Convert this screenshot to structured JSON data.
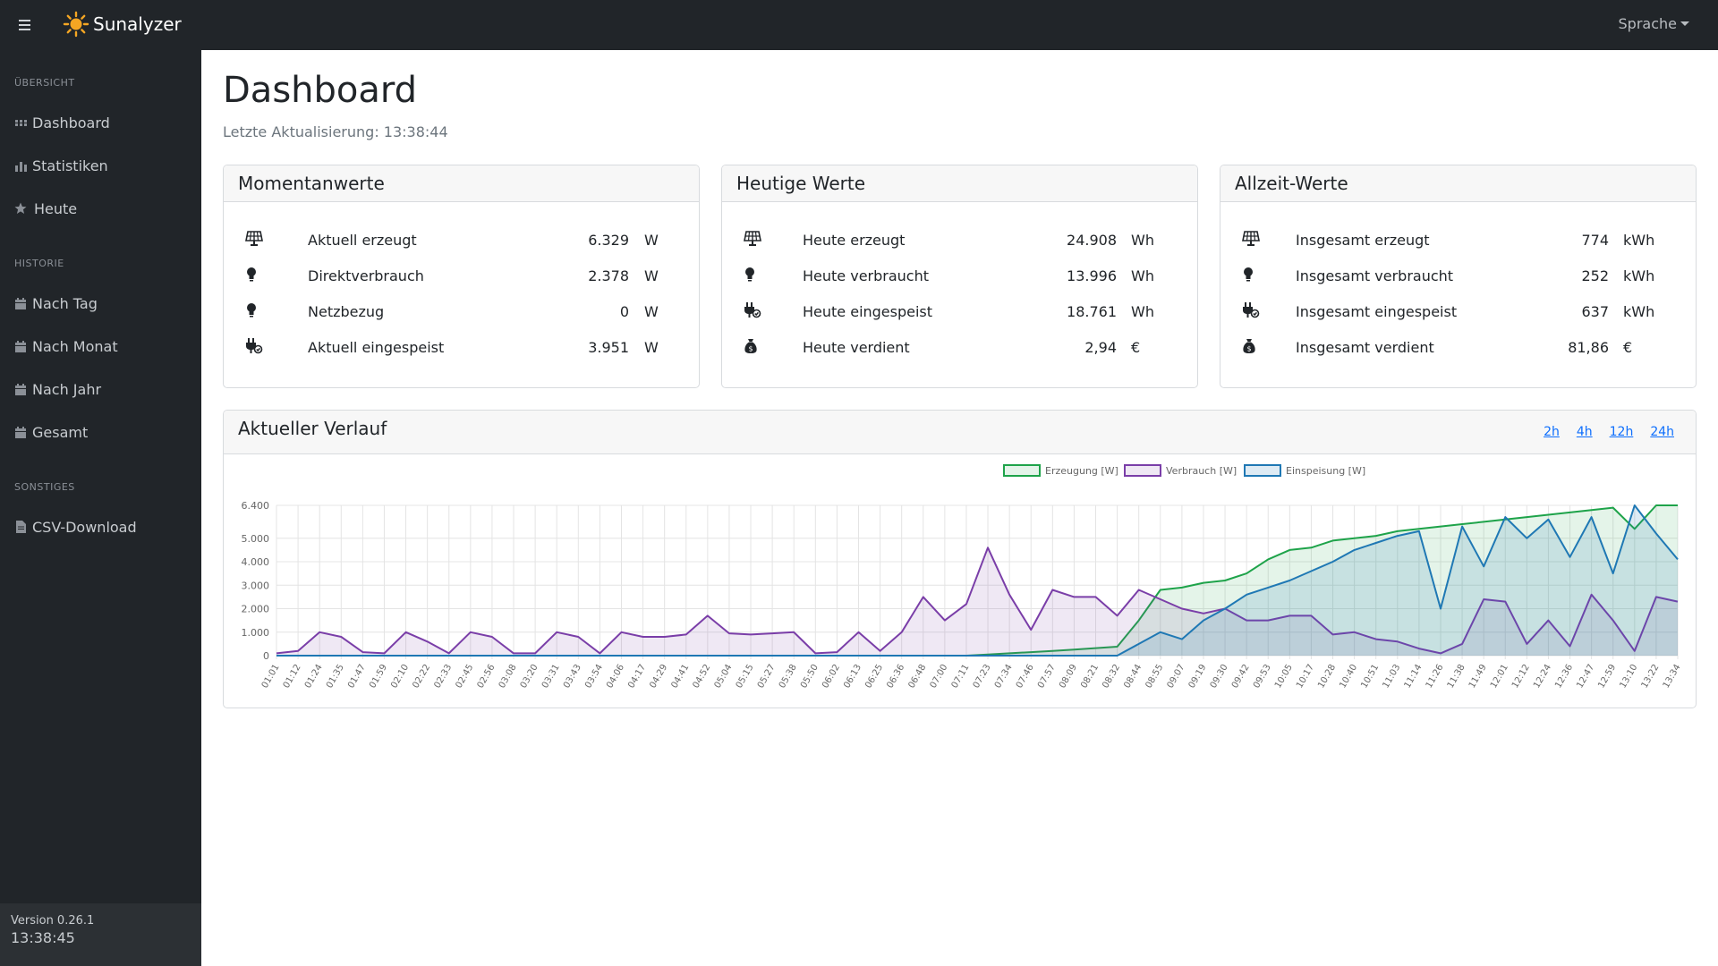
{
  "app": {
    "name": "Sunalyzer"
  },
  "navbar": {
    "language_label": "Sprache"
  },
  "sidebar": {
    "sections": [
      {
        "heading": "Übersicht",
        "items": [
          {
            "label": "Dashboard",
            "icon": "grid-icon"
          },
          {
            "label": "Statistiken",
            "icon": "bar-chart-icon"
          },
          {
            "label": "Heute",
            "icon": "star-icon"
          }
        ]
      },
      {
        "heading": "Historie",
        "items": [
          {
            "label": "Nach Tag",
            "icon": "calendar-icon"
          },
          {
            "label": "Nach Monat",
            "icon": "calendar-icon"
          },
          {
            "label": "Nach Jahr",
            "icon": "calendar-icon"
          },
          {
            "label": "Gesamt",
            "icon": "calendar-icon"
          }
        ]
      },
      {
        "heading": "Sonstiges",
        "items": [
          {
            "label": "CSV-Download",
            "icon": "file-icon"
          }
        ]
      }
    ],
    "version": "Version 0.26.1",
    "clock": "13:38:45"
  },
  "page": {
    "title": "Dashboard",
    "last_update": "Letzte Aktualisierung: 13:38:44"
  },
  "cards": {
    "momentan": {
      "title": "Momentanwerte",
      "rows": [
        {
          "icon": "solar-panel-icon",
          "label": "Aktuell erzeugt",
          "value": "6.329",
          "unit": "W"
        },
        {
          "icon": "lightbulb-icon",
          "label": "Direktverbrauch",
          "value": "2.378",
          "unit": "W"
        },
        {
          "icon": "lightbulb-icon",
          "label": "Netzbezug",
          "value": "0",
          "unit": "W"
        },
        {
          "icon": "plug-icon",
          "label": "Aktuell eingespeist",
          "value": "3.951",
          "unit": "W"
        }
      ]
    },
    "heute": {
      "title": "Heutige Werte",
      "rows": [
        {
          "icon": "solar-panel-icon",
          "label": "Heute erzeugt",
          "value": "24.908",
          "unit": "Wh"
        },
        {
          "icon": "lightbulb-icon",
          "label": "Heute verbraucht",
          "value": "13.996",
          "unit": "Wh"
        },
        {
          "icon": "plug-icon",
          "label": "Heute eingespeist",
          "value": "18.761",
          "unit": "Wh"
        },
        {
          "icon": "money-bag-icon",
          "label": "Heute verdient",
          "value": "2,94",
          "unit": "€"
        }
      ]
    },
    "allzeit": {
      "title": "Allzeit-Werte",
      "rows": [
        {
          "icon": "solar-panel-icon",
          "label": "Insgesamt erzeugt",
          "value": "774",
          "unit": "kWh"
        },
        {
          "icon": "lightbulb-icon",
          "label": "Insgesamt verbraucht",
          "value": "252",
          "unit": "kWh"
        },
        {
          "icon": "plug-icon",
          "label": "Insgesamt eingespeist",
          "value": "637",
          "unit": "kWh"
        },
        {
          "icon": "money-bag-icon",
          "label": "Insgesamt verdient",
          "value": "81,86",
          "unit": "€"
        }
      ]
    }
  },
  "verlauf": {
    "title": "Aktueller Verlauf",
    "ranges": [
      "2h",
      "4h",
      "12h",
      "24h"
    ]
  },
  "colors": {
    "erzeugung": "#1ea34a",
    "verbrauch": "#7a3ea8",
    "einspeisung": "#1f78b4"
  },
  "chart_data": {
    "type": "line",
    "title": "",
    "xlabel": "",
    "ylabel": "",
    "ylim": [
      0,
      6400
    ],
    "yticks": [
      "0",
      "1.000",
      "2.000",
      "3.000",
      "4.000",
      "5.000",
      "6.400"
    ],
    "ytick_values": [
      0,
      1000,
      2000,
      3000,
      4000,
      5000,
      6400
    ],
    "legend_position": "top",
    "x": [
      "01:01",
      "01:12",
      "01:24",
      "01:35",
      "01:47",
      "01:59",
      "02:10",
      "02:22",
      "02:33",
      "02:45",
      "02:56",
      "03:08",
      "03:20",
      "03:31",
      "03:43",
      "03:54",
      "04:06",
      "04:17",
      "04:29",
      "04:41",
      "04:52",
      "05:04",
      "05:15",
      "05:27",
      "05:38",
      "05:50",
      "06:02",
      "06:13",
      "06:25",
      "06:36",
      "06:48",
      "07:00",
      "07:11",
      "07:23",
      "07:34",
      "07:46",
      "07:57",
      "08:09",
      "08:21",
      "08:32",
      "08:44",
      "08:55",
      "09:07",
      "09:19",
      "09:30",
      "09:42",
      "09:53",
      "10:05",
      "10:17",
      "10:28",
      "10:40",
      "10:51",
      "11:03",
      "11:14",
      "11:26",
      "11:38",
      "11:49",
      "12:01",
      "12:12",
      "12:24",
      "12:36",
      "12:47",
      "12:59",
      "13:10",
      "13:22",
      "13:34"
    ],
    "series": [
      {
        "name": "Erzeugung [W]",
        "values": [
          0,
          0,
          0,
          0,
          0,
          0,
          0,
          0,
          0,
          0,
          0,
          0,
          0,
          0,
          0,
          0,
          0,
          0,
          0,
          0,
          0,
          0,
          0,
          0,
          0,
          0,
          0,
          0,
          0,
          0,
          0,
          0,
          0,
          50,
          100,
          150,
          200,
          260,
          320,
          380,
          1500,
          2800,
          2900,
          3100,
          3200,
          3500,
          4100,
          4500,
          4600,
          4900,
          5000,
          5100,
          5300,
          5400,
          5500,
          5600,
          5700,
          5800,
          5900,
          6000,
          6100,
          6200,
          6300,
          5400,
          6400,
          6400
        ]
      },
      {
        "name": "Verbrauch [W]",
        "values": [
          100,
          200,
          1000,
          800,
          150,
          100,
          1000,
          600,
          100,
          1000,
          800,
          100,
          100,
          1000,
          800,
          100,
          1000,
          800,
          800,
          900,
          1700,
          950,
          900,
          950,
          1000,
          100,
          150,
          1000,
          200,
          1000,
          2500,
          1500,
          2200,
          4600,
          2600,
          1100,
          2800,
          2500,
          2500,
          1700,
          2800,
          2400,
          2000,
          1800,
          2000,
          1500,
          1500,
          1700,
          1700,
          900,
          1000,
          700,
          600,
          300,
          100,
          500,
          2400,
          2300,
          500,
          1500,
          400,
          2600,
          1500,
          200,
          2500,
          2300
        ]
      },
      {
        "name": "Einspeisung [W]",
        "values": [
          0,
          0,
          0,
          0,
          0,
          0,
          0,
          0,
          0,
          0,
          0,
          0,
          0,
          0,
          0,
          0,
          0,
          0,
          0,
          0,
          0,
          0,
          0,
          0,
          0,
          0,
          0,
          0,
          0,
          0,
          0,
          0,
          0,
          0,
          0,
          0,
          0,
          0,
          0,
          0,
          500,
          1000,
          700,
          1500,
          2000,
          2600,
          2900,
          3200,
          3600,
          4000,
          4500,
          4800,
          5100,
          5300,
          2000,
          5500,
          3800,
          5900,
          5000,
          5800,
          4200,
          5900,
          3500,
          6400,
          5200,
          4100
        ]
      }
    ]
  }
}
